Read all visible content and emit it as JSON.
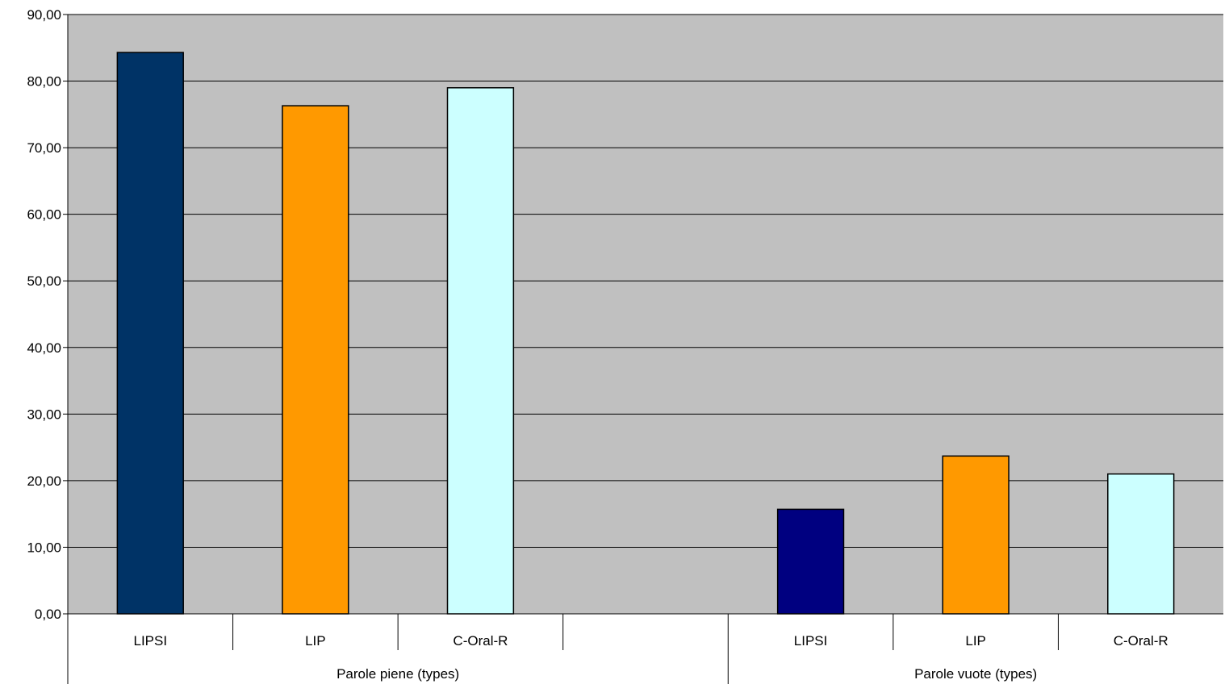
{
  "chart_data": {
    "type": "bar",
    "title": "",
    "xlabel": "",
    "ylabel": "",
    "ylim": [
      0,
      90
    ],
    "yticks": [
      "0,00",
      "10,00",
      "20,00",
      "30,00",
      "40,00",
      "50,00",
      "60,00",
      "70,00",
      "80,00",
      "90,00"
    ],
    "grid": true,
    "legend": "none",
    "groups": [
      {
        "label": "Parole piene (types)",
        "bars": [
          {
            "category": "LIPSI",
            "value": 84.3,
            "color": "#003366"
          },
          {
            "category": "LIP",
            "value": 76.3,
            "color": "#FF9900"
          },
          {
            "category": "C-Oral-R",
            "value": 79.0,
            "color": "#CCFFFF"
          },
          {
            "category": "",
            "value": null,
            "color": ""
          }
        ]
      },
      {
        "label": "Parole vuote (types)",
        "bars": [
          {
            "category": "LIPSI",
            "value": 15.7,
            "color": "#000080"
          },
          {
            "category": "LIP",
            "value": 23.7,
            "color": "#FF9900"
          },
          {
            "category": "C-Oral-R",
            "value": 21.0,
            "color": "#CCFFFF"
          }
        ]
      }
    ],
    "colors": {
      "plot_background": "#C0C0C0",
      "gridline": "#000000",
      "bar_outline": "#000000"
    }
  }
}
